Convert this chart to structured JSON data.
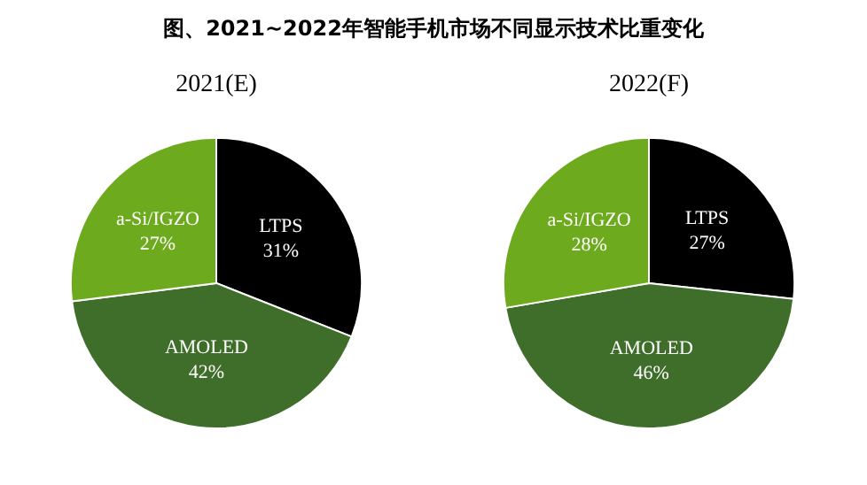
{
  "chart_data": [
    {
      "type": "pie",
      "title": "图、2021~2022年智能手机市场不同显示技术比重变化",
      "subtitle": "2021(E)",
      "categories": [
        "LTPS",
        "AMOLED",
        "a-Si/IGZO"
      ],
      "values": [
        31,
        42,
        27
      ],
      "value_labels": [
        "31%",
        "42%",
        "27%"
      ],
      "colors": [
        "#000000",
        "#3f6e2a",
        "#6eaa1e"
      ],
      "legend": false
    },
    {
      "type": "pie",
      "subtitle": "2022(F)",
      "categories": [
        "LTPS",
        "AMOLED",
        "a-Si/IGZO"
      ],
      "values": [
        27,
        46,
        28
      ],
      "value_labels": [
        "27%",
        "46%",
        "28%"
      ],
      "colors": [
        "#000000",
        "#3f6e2a",
        "#6eaa1e"
      ],
      "legend": false
    }
  ]
}
